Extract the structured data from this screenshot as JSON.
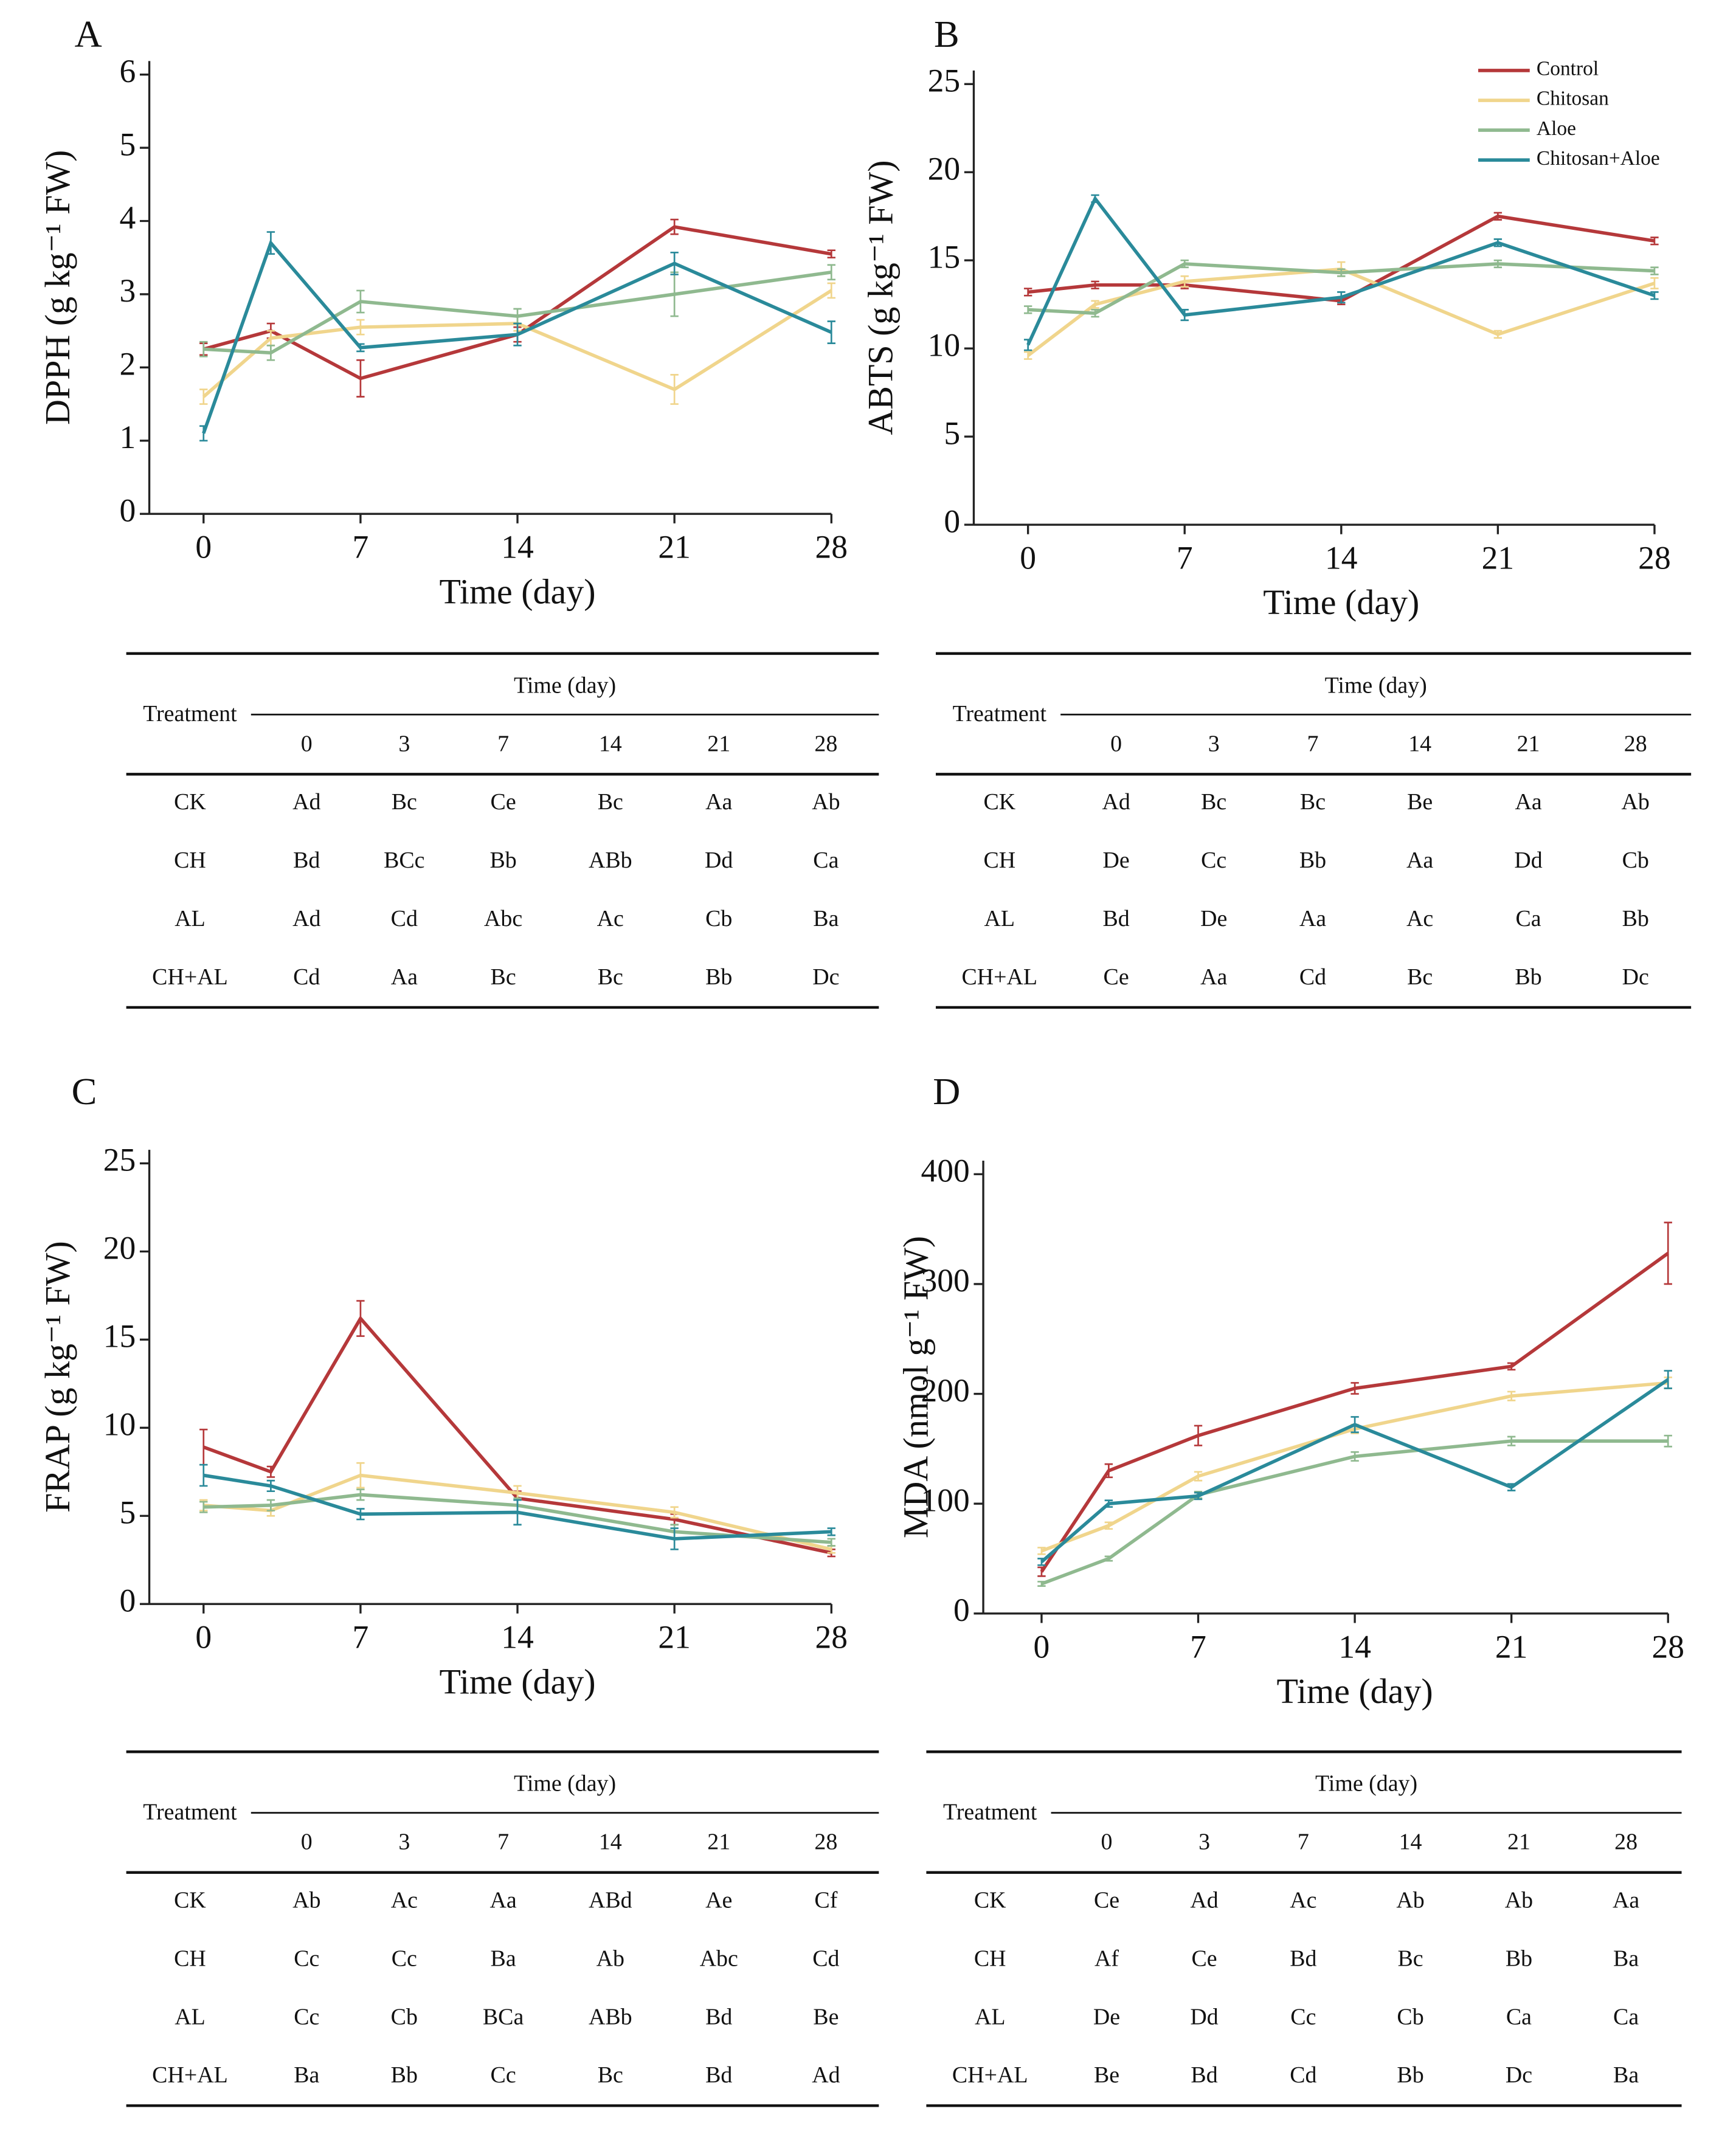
{
  "chart_data": [
    {
      "type": "line",
      "title": "A",
      "y_label": "DPPH (g kg⁻¹ FW)",
      "x_label": "Time (day)",
      "x": [
        0,
        3,
        7,
        14,
        21,
        28
      ],
      "xlim": [
        0,
        28
      ],
      "xticks": [
        0,
        7,
        14,
        21,
        28
      ],
      "ylim": [
        0,
        6
      ],
      "yticks": [
        0,
        1,
        2,
        3,
        4,
        5,
        6
      ],
      "series": [
        {
          "color": "#b5383a",
          "values": [
            2.25,
            2.5,
            1.85,
            2.45,
            3.92,
            3.55
          ],
          "errors": [
            0.08,
            0.1,
            0.25,
            0.1,
            0.1,
            0.05
          ]
        },
        {
          "color": "#f0d58c",
          "values": [
            1.6,
            2.4,
            2.55,
            2.6,
            1.7,
            3.05
          ],
          "errors": [
            0.1,
            0.1,
            0.1,
            0.1,
            0.2,
            0.1
          ]
        },
        {
          "color": "#8fb98f",
          "values": [
            2.25,
            2.2,
            2.9,
            2.7,
            3.0,
            3.3
          ],
          "errors": [
            0.1,
            0.1,
            0.15,
            0.1,
            0.3,
            0.1
          ]
        },
        {
          "color": "#2a8a9a",
          "values": [
            1.1,
            3.7,
            2.27,
            2.45,
            3.42,
            2.48
          ],
          "errors": [
            0.1,
            0.15,
            0.05,
            0.15,
            0.15,
            0.15
          ]
        }
      ]
    },
    {
      "type": "line",
      "title": "B",
      "y_label": "ABTS (g kg⁻¹ FW)",
      "x_label": "Time (day)",
      "x": [
        0,
        3,
        7,
        14,
        21,
        28
      ],
      "xlim": [
        0,
        28
      ],
      "xticks": [
        0,
        7,
        14,
        21,
        28
      ],
      "ylim": [
        0,
        25
      ],
      "yticks": [
        0,
        5,
        10,
        15,
        20,
        25
      ],
      "legend": "upper right",
      "series": [
        {
          "name": "Control",
          "color": "#b5383a",
          "values": [
            13.2,
            13.6,
            13.6,
            12.7,
            17.5,
            16.1
          ],
          "errors": [
            0.2,
            0.2,
            0.2,
            0.2,
            0.2,
            0.2
          ]
        },
        {
          "name": "Chitosan",
          "color": "#f0d58c",
          "values": [
            9.6,
            12.5,
            13.8,
            14.5,
            10.8,
            13.7
          ],
          "errors": [
            0.2,
            0.2,
            0.3,
            0.4,
            0.2,
            0.3
          ]
        },
        {
          "name": "Aloe",
          "color": "#8fb98f",
          "values": [
            12.2,
            12.0,
            14.8,
            14.3,
            14.8,
            14.4
          ],
          "errors": [
            0.2,
            0.2,
            0.2,
            0.2,
            0.2,
            0.2
          ]
        },
        {
          "name": "Chitosan+Aloe",
          "color": "#2a8a9a",
          "values": [
            10.2,
            18.5,
            11.9,
            12.9,
            16.0,
            13.0
          ],
          "errors": [
            0.3,
            0.2,
            0.3,
            0.3,
            0.2,
            0.2
          ]
        }
      ]
    },
    {
      "type": "line",
      "title": "C",
      "y_label": "FRAP (g kg⁻¹ FW)",
      "x_label": "Time (day)",
      "x": [
        0,
        3,
        7,
        14,
        21,
        28
      ],
      "xlim": [
        0,
        28
      ],
      "xticks": [
        0,
        7,
        14,
        21,
        28
      ],
      "ylim": [
        0,
        25
      ],
      "yticks": [
        0,
        5,
        10,
        15,
        20,
        25
      ],
      "series": [
        {
          "color": "#b5383a",
          "values": [
            8.9,
            7.5,
            16.2,
            6.0,
            4.8,
            2.9
          ],
          "errors": [
            1.0,
            0.3,
            1.0,
            0.4,
            0.3,
            0.2
          ]
        },
        {
          "color": "#f0d58c",
          "values": [
            5.6,
            5.3,
            7.3,
            6.3,
            5.2,
            3.1
          ],
          "errors": [
            0.3,
            0.3,
            0.7,
            0.4,
            0.3,
            0.2
          ]
        },
        {
          "color": "#8fb98f",
          "values": [
            5.5,
            5.6,
            6.2,
            5.6,
            4.1,
            3.5
          ],
          "errors": [
            0.3,
            0.3,
            0.3,
            0.4,
            0.4,
            0.2
          ]
        },
        {
          "color": "#2a8a9a",
          "values": [
            7.3,
            6.7,
            5.1,
            5.2,
            3.7,
            4.1
          ],
          "errors": [
            0.6,
            0.3,
            0.3,
            0.7,
            0.6,
            0.2
          ]
        }
      ]
    },
    {
      "type": "line",
      "title": "D",
      "y_label": "MDA (nmol g⁻¹ FW)",
      "x_label": "Time (day)",
      "x": [
        0,
        3,
        7,
        14,
        21,
        28
      ],
      "xlim": [
        0,
        28
      ],
      "xticks": [
        0,
        7,
        14,
        21,
        28
      ],
      "ylim": [
        0,
        400
      ],
      "yticks": [
        0,
        100,
        200,
        300,
        400
      ],
      "series": [
        {
          "color": "#b5383a",
          "values": [
            38,
            130,
            162,
            205,
            225,
            328
          ],
          "errors": [
            4,
            6,
            9,
            5,
            3,
            28
          ]
        },
        {
          "color": "#f0d58c",
          "values": [
            57,
            80,
            125,
            168,
            198,
            210
          ],
          "errors": [
            3,
            3,
            4,
            4,
            4,
            5
          ]
        },
        {
          "color": "#8fb98f",
          "values": [
            27,
            50,
            108,
            143,
            157,
            157
          ],
          "errors": [
            2,
            2,
            3,
            4,
            4,
            5
          ]
        },
        {
          "color": "#2a8a9a",
          "values": [
            47,
            100,
            107,
            172,
            115,
            213
          ],
          "errors": [
            3,
            3,
            3,
            7,
            3,
            8
          ]
        }
      ]
    }
  ],
  "tables": [
    {
      "row_header": "Treatment",
      "group_header": "Time (day)",
      "columns": [
        "0",
        "3",
        "7",
        "14",
        "21",
        "28"
      ],
      "rows": [
        [
          "CK",
          "Ad",
          "Bc",
          "Ce",
          "Bc",
          "Aa",
          "Ab"
        ],
        [
          "CH",
          "Bd",
          "BCc",
          "Bb",
          "ABb",
          "Dd",
          "Ca"
        ],
        [
          "AL",
          "Ad",
          "Cd",
          "Abc",
          "Ac",
          "Cb",
          "Ba"
        ],
        [
          "CH+AL",
          "Cd",
          "Aa",
          "Bc",
          "Bc",
          "Bb",
          "Dc"
        ]
      ]
    },
    {
      "row_header": "Treatment",
      "group_header": "Time (day)",
      "columns": [
        "0",
        "3",
        "7",
        "14",
        "21",
        "28"
      ],
      "rows": [
        [
          "CK",
          "Ad",
          "Bc",
          "Bc",
          "Be",
          "Aa",
          "Ab"
        ],
        [
          "CH",
          "De",
          "Cc",
          "Bb",
          "Aa",
          "Dd",
          "Cb"
        ],
        [
          "AL",
          "Bd",
          "De",
          "Aa",
          "Ac",
          "Ca",
          "Bb"
        ],
        [
          "CH+AL",
          "Ce",
          "Aa",
          "Cd",
          "Bc",
          "Bb",
          "Dc"
        ]
      ]
    },
    {
      "row_header": "Treatment",
      "group_header": "Time (day)",
      "columns": [
        "0",
        "3",
        "7",
        "14",
        "21",
        "28"
      ],
      "rows": [
        [
          "CK",
          "Ab",
          "Ac",
          "Aa",
          "ABd",
          "Ae",
          "Cf"
        ],
        [
          "CH",
          "Cc",
          "Cc",
          "Ba",
          "Ab",
          "Abc",
          "Cd"
        ],
        [
          "AL",
          "Cc",
          "Cb",
          "BCa",
          "ABb",
          "Bd",
          "Be"
        ],
        [
          "CH+AL",
          "Ba",
          "Bb",
          "Cc",
          "Bc",
          "Bd",
          "Ad"
        ]
      ]
    },
    {
      "row_header": "Treatment",
      "group_header": "Time (day)",
      "columns": [
        "0",
        "3",
        "7",
        "14",
        "21",
        "28"
      ],
      "rows": [
        [
          "CK",
          "Ce",
          "Ad",
          "Ac",
          "Ab",
          "Ab",
          "Aa"
        ],
        [
          "CH",
          "Af",
          "Ce",
          "Bd",
          "Bc",
          "Bb",
          "Ba"
        ],
        [
          "AL",
          "De",
          "Dd",
          "Cc",
          "Cb",
          "Ca",
          "Ca"
        ],
        [
          "CH+AL",
          "Be",
          "Bd",
          "Cd",
          "Bb",
          "Dc",
          "Ba"
        ]
      ]
    }
  ]
}
